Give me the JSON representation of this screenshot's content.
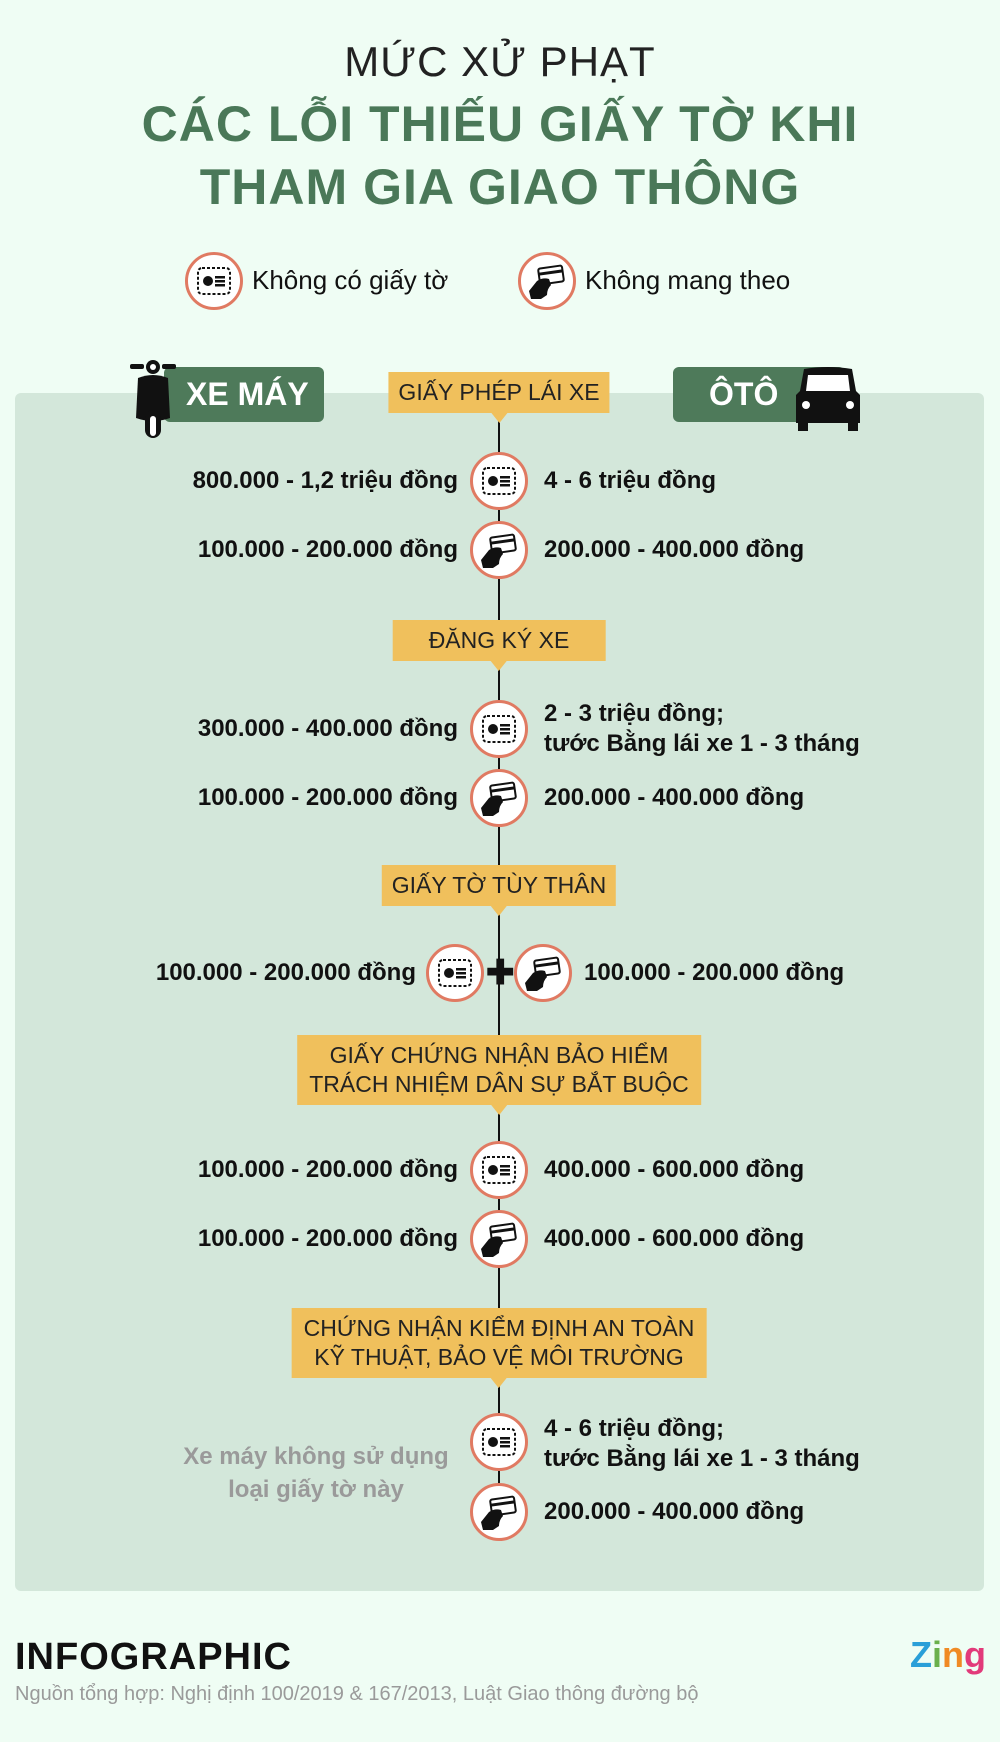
{
  "title": {
    "line1": "MỨC XỬ PHẠT",
    "line2": "CÁC LỖI THIẾU GIẤY TỜ KHI",
    "line3": "THAM GIA GIAO THÔNG"
  },
  "legend": {
    "no_document": "Không có giấy tờ",
    "not_carried": "Không mang theo"
  },
  "vehicles": {
    "motorbike": "XE MÁY",
    "car": "ÔTÔ"
  },
  "sections": [
    {
      "label": "GIẤY PHÉP LÁI XE",
      "rows": [
        {
          "icon": "no-document-icon",
          "motorbike": "800.000 - 1,2 triệu đồng",
          "car": "4 - 6 triệu đồng"
        },
        {
          "icon": "not-carried-icon",
          "motorbike": "100.000 - 200.000 đồng",
          "car": "200.000 - 400.000 đồng"
        }
      ]
    },
    {
      "label": "ĐĂNG KÝ XE",
      "rows": [
        {
          "icon": "no-document-icon",
          "motorbike": "300.000 - 400.000 đồng",
          "car": "2 - 3 triệu đồng;",
          "car_line2": "tước Bằng lái xe 1 - 3 tháng"
        },
        {
          "icon": "not-carried-icon",
          "motorbike": "100.000 - 200.000 đồng",
          "car": "200.000 - 400.000 đồng"
        }
      ]
    },
    {
      "label": "GIẤY TỜ TÙY THÂN",
      "rows": [
        {
          "icon": "no-document-icon + not-carried-icon",
          "motorbike": "100.000 - 200.000 đồng",
          "car": "100.000 - 200.000 đồng"
        }
      ]
    },
    {
      "label": "GIẤY CHỨNG NHẬN BẢO HIỂM",
      "label_line2": "TRÁCH NHIỆM DÂN SỰ BẮT BUỘC",
      "rows": [
        {
          "icon": "no-document-icon",
          "motorbike": "100.000 - 200.000 đồng",
          "car": "400.000 - 600.000 đồng"
        },
        {
          "icon": "not-carried-icon",
          "motorbike": "100.000 - 200.000 đồng",
          "car": "400.000 - 600.000 đồng"
        }
      ]
    },
    {
      "label": "CHỨNG NHẬN KIỂM ĐỊNH AN TOÀN",
      "label_line2": "KỸ THUẬT, BẢO VỆ MÔI TRƯỜNG",
      "motorbike_note": "Xe máy không sử dụng",
      "motorbike_note_line2": "loại giấy tờ này",
      "rows": [
        {
          "icon": "no-document-icon",
          "car": "4 - 6 triệu đồng;",
          "car_line2": "tước Bằng lái xe 1 - 3 tháng"
        },
        {
          "icon": "not-carried-icon",
          "car": "200.000 - 400.000 đồng"
        }
      ]
    }
  ],
  "footer": {
    "brand": "INFOGRAPHIC",
    "logo": "Zing",
    "source": "Nguồn tổng hợp: Nghị định 100/2019 & 167/2013, Luật Giao thông đường bộ"
  },
  "colors": {
    "background": "#effdf4",
    "panel": "#d3e7da",
    "title_green": "#4a7858",
    "tag_green": "#4e7a5a",
    "section_yellow": "#f0c05c",
    "icon_ring": "#e07a62"
  }
}
